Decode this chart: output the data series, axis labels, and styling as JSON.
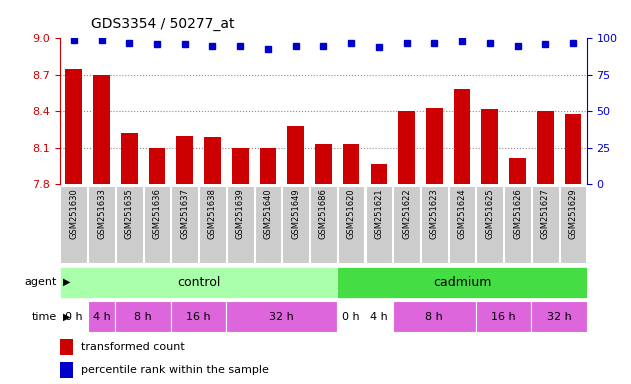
{
  "title": "GDS3354 / 50277_at",
  "samples": [
    "GSM251630",
    "GSM251633",
    "GSM251635",
    "GSM251636",
    "GSM251637",
    "GSM251638",
    "GSM251639",
    "GSM251640",
    "GSM251649",
    "GSM251686",
    "GSM251620",
    "GSM251621",
    "GSM251622",
    "GSM251623",
    "GSM251624",
    "GSM251625",
    "GSM251626",
    "GSM251627",
    "GSM251629"
  ],
  "bar_values": [
    8.75,
    8.7,
    8.22,
    8.1,
    8.2,
    8.19,
    8.1,
    8.1,
    8.28,
    8.13,
    8.13,
    7.97,
    8.4,
    8.43,
    8.58,
    8.42,
    8.02,
    8.4,
    8.38
  ],
  "percentile_values": [
    99,
    99,
    97,
    96,
    96,
    95,
    95,
    93,
    95,
    95,
    97,
    94,
    97,
    97,
    98,
    97,
    95,
    96,
    97
  ],
  "bar_color": "#cc0000",
  "percentile_color": "#0000cc",
  "ylim_left": [
    7.8,
    9.0
  ],
  "ylim_right": [
    0,
    100
  ],
  "yticks_left": [
    7.8,
    8.1,
    8.4,
    8.7,
    9.0
  ],
  "yticks_right": [
    0,
    25,
    50,
    75,
    100
  ],
  "control_color": "#aaffaa",
  "cadmium_color": "#44dd44",
  "time_color_alt": "#dd66dd",
  "time_color_white": "#ffffff",
  "legend_bar_label": "transformed count",
  "legend_pct_label": "percentile rank within the sample",
  "bg_color": "#ffffff",
  "grid_color": "#888888",
  "tick_bg_color": "#cccccc",
  "time_segments_ctrl": [
    {
      "label": "0 h",
      "start": 0,
      "end": 1,
      "color": "#ffffff"
    },
    {
      "label": "4 h",
      "start": 1,
      "end": 2,
      "color": "#dd66dd"
    },
    {
      "label": "8 h",
      "start": 2,
      "end": 4,
      "color": "#dd66dd"
    },
    {
      "label": "16 h",
      "start": 4,
      "end": 6,
      "color": "#dd66dd"
    },
    {
      "label": "32 h",
      "start": 6,
      "end": 10,
      "color": "#dd66dd"
    }
  ],
  "time_segments_cad": [
    {
      "label": "0 h",
      "start": 10,
      "end": 11,
      "color": "#ffffff"
    },
    {
      "label": "4 h",
      "start": 11,
      "end": 12,
      "color": "#ffffff"
    },
    {
      "label": "8 h",
      "start": 12,
      "end": 15,
      "color": "#dd66dd"
    },
    {
      "label": "16 h",
      "start": 15,
      "end": 17,
      "color": "#dd66dd"
    },
    {
      "label": "32 h",
      "start": 17,
      "end": 19,
      "color": "#dd66dd"
    }
  ]
}
